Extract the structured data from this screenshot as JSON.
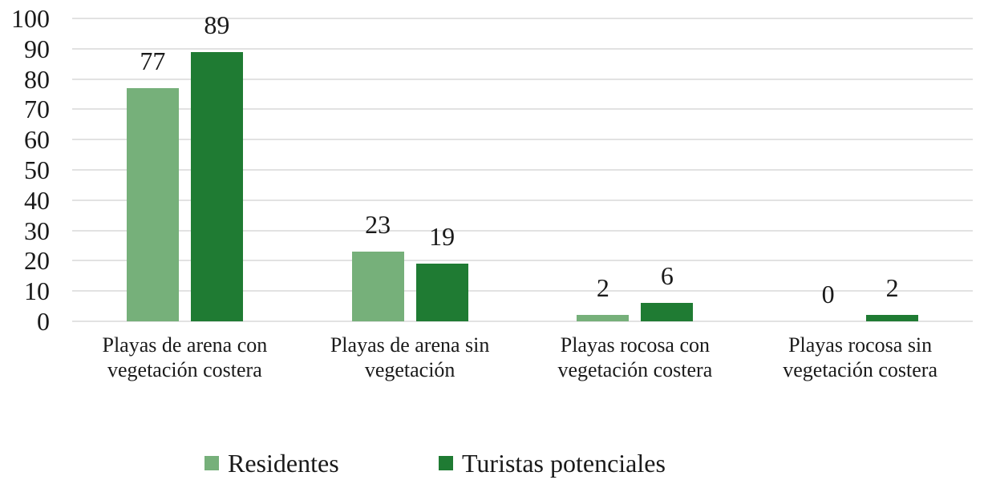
{
  "chart_data": {
    "type": "bar",
    "title": "",
    "xlabel": "",
    "ylabel": "",
    "categories": [
      "Playas de arena con vegetación costera",
      "Playas de arena sin vegetación",
      "Playas rocosa con vegetación costera",
      "Playas rocosa sin vegetación costera"
    ],
    "series": [
      {
        "name": "Residentes",
        "color": "#76B07A",
        "values": [
          77,
          23,
          2,
          0
        ]
      },
      {
        "name": "Turistas potenciales",
        "color": "#1F7B33",
        "values": [
          89,
          19,
          6,
          2
        ]
      }
    ],
    "ylim": [
      0,
      100
    ],
    "yticks": [
      0,
      10,
      20,
      30,
      40,
      50,
      60,
      70,
      80,
      90,
      100
    ],
    "grid": true,
    "value_labels": true,
    "legend_position": "bottom"
  },
  "colors": {
    "text": "#1A1A1A",
    "gridline": "#E2E2E2",
    "background": "#FFFFFF"
  }
}
